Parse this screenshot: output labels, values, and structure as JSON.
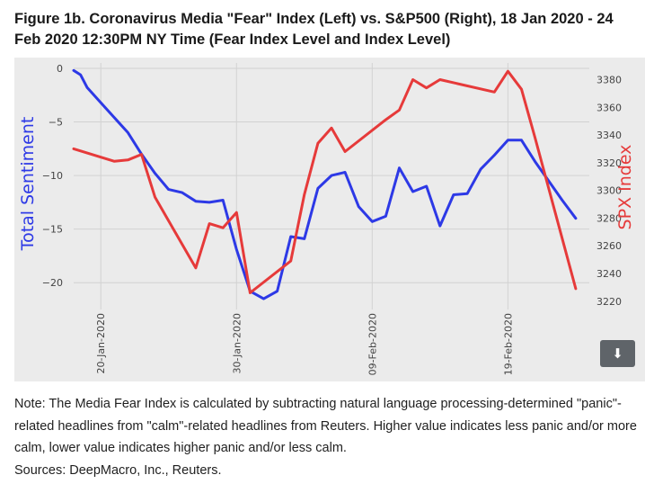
{
  "figure": {
    "title": "Figure 1b. Coronavirus Media \"Fear\" Index (Left) vs. S&P500 (Right), 18 Jan 2020 - 24 Feb 2020 12:30PM NY Time (Fear Index Level and Index Level)"
  },
  "chart_data": {
    "type": "line",
    "background": "#ebebeb",
    "grid": true,
    "x_range": [
      "2020-01-18",
      "2020-02-25"
    ],
    "x_ticks": [
      "2020-01-20",
      "2020-01-30",
      "2020-02-09",
      "2020-02-19"
    ],
    "x_tick_labels": [
      "20-Jan-2020",
      "30-Jan-2020",
      "09-Feb-2020",
      "19-Feb-2020"
    ],
    "left_axis": {
      "label": "Total Sentiment",
      "color": "#2d39e6",
      "range": [
        -22.5,
        0.5
      ],
      "ticks": [
        0,
        -5,
        -10,
        -15,
        -20
      ],
      "tick_labels": [
        "0",
        "−5",
        "−10",
        "−15",
        "−20"
      ]
    },
    "right_axis": {
      "label": "SPX Index",
      "color": "#e63a3a",
      "range": [
        3214,
        3392
      ],
      "ticks": [
        3220,
        3240,
        3260,
        3280,
        3300,
        3320,
        3340,
        3360,
        3380
      ],
      "tick_labels": [
        "3220",
        "3240",
        "3260",
        "3280",
        "3300",
        "3320",
        "3340",
        "3360",
        "3380"
      ]
    },
    "series": [
      {
        "axis": "left",
        "color": "#2d39e6",
        "x": [
          "2020-01-18",
          "2020-01-18T12:00",
          "2020-01-19",
          "2020-01-20",
          "2020-01-21",
          "2020-01-22",
          "2020-01-23",
          "2020-01-24",
          "2020-01-25",
          "2020-01-26",
          "2020-01-27",
          "2020-01-28",
          "2020-01-29",
          "2020-01-30",
          "2020-01-31",
          "2020-02-01",
          "2020-02-02",
          "2020-02-03",
          "2020-02-04",
          "2020-02-05",
          "2020-02-06",
          "2020-02-07",
          "2020-02-08",
          "2020-02-09",
          "2020-02-10",
          "2020-02-11",
          "2020-02-12",
          "2020-02-13",
          "2020-02-14",
          "2020-02-15",
          "2020-02-16",
          "2020-02-17",
          "2020-02-18",
          "2020-02-19",
          "2020-02-20",
          "2020-02-21",
          "2020-02-22",
          "2020-02-23",
          "2020-02-24"
        ],
        "y": [
          -0.2,
          -0.6,
          -1.8,
          -3.2,
          -4.6,
          -6.0,
          -8.0,
          -9.8,
          -11.3,
          -11.6,
          -12.4,
          -12.5,
          -12.3,
          -16.9,
          -20.8,
          -21.5,
          -20.8,
          -15.7,
          -15.9,
          -11.2,
          -10.0,
          -9.7,
          -12.9,
          -14.3,
          -13.8,
          -9.3,
          -11.5,
          -11.0,
          -14.7,
          -11.8,
          -11.7,
          -9.4,
          -8.1,
          -6.7,
          -6.7,
          -8.7,
          -10.5,
          -12.3,
          -14.0
        ]
      },
      {
        "axis": "right",
        "color": "#e63a3a",
        "x": [
          "2020-01-18",
          "2020-01-21",
          "2020-01-22",
          "2020-01-23",
          "2020-01-24",
          "2020-01-27",
          "2020-01-28",
          "2020-01-29",
          "2020-01-30",
          "2020-01-31",
          "2020-02-03",
          "2020-02-04",
          "2020-02-05",
          "2020-02-06",
          "2020-02-07",
          "2020-02-10",
          "2020-02-11",
          "2020-02-12",
          "2020-02-13",
          "2020-02-14",
          "2020-02-18",
          "2020-02-19",
          "2020-02-20",
          "2020-02-21",
          "2020-02-24"
        ],
        "y": [
          3330,
          3321,
          3322,
          3326,
          3295,
          3244,
          3276,
          3273,
          3284,
          3226,
          3249,
          3297,
          3334,
          3345,
          3328,
          3351,
          3358,
          3380,
          3374,
          3380,
          3371,
          3386,
          3373,
          3338,
          3229
        ]
      }
    ]
  },
  "note": {
    "text": "Note: The Media Fear Index is calculated by subtracting natural language processing-determined \"panic\"-related headlines from \"calm\"-related headlines from Reuters. Higher value indicates less panic and/or more calm, lower value indicates higher panic and/or less calm.",
    "sources": "Sources: DeepMacro, Inc., Reuters."
  },
  "download_icon": "arrow-down-icon"
}
